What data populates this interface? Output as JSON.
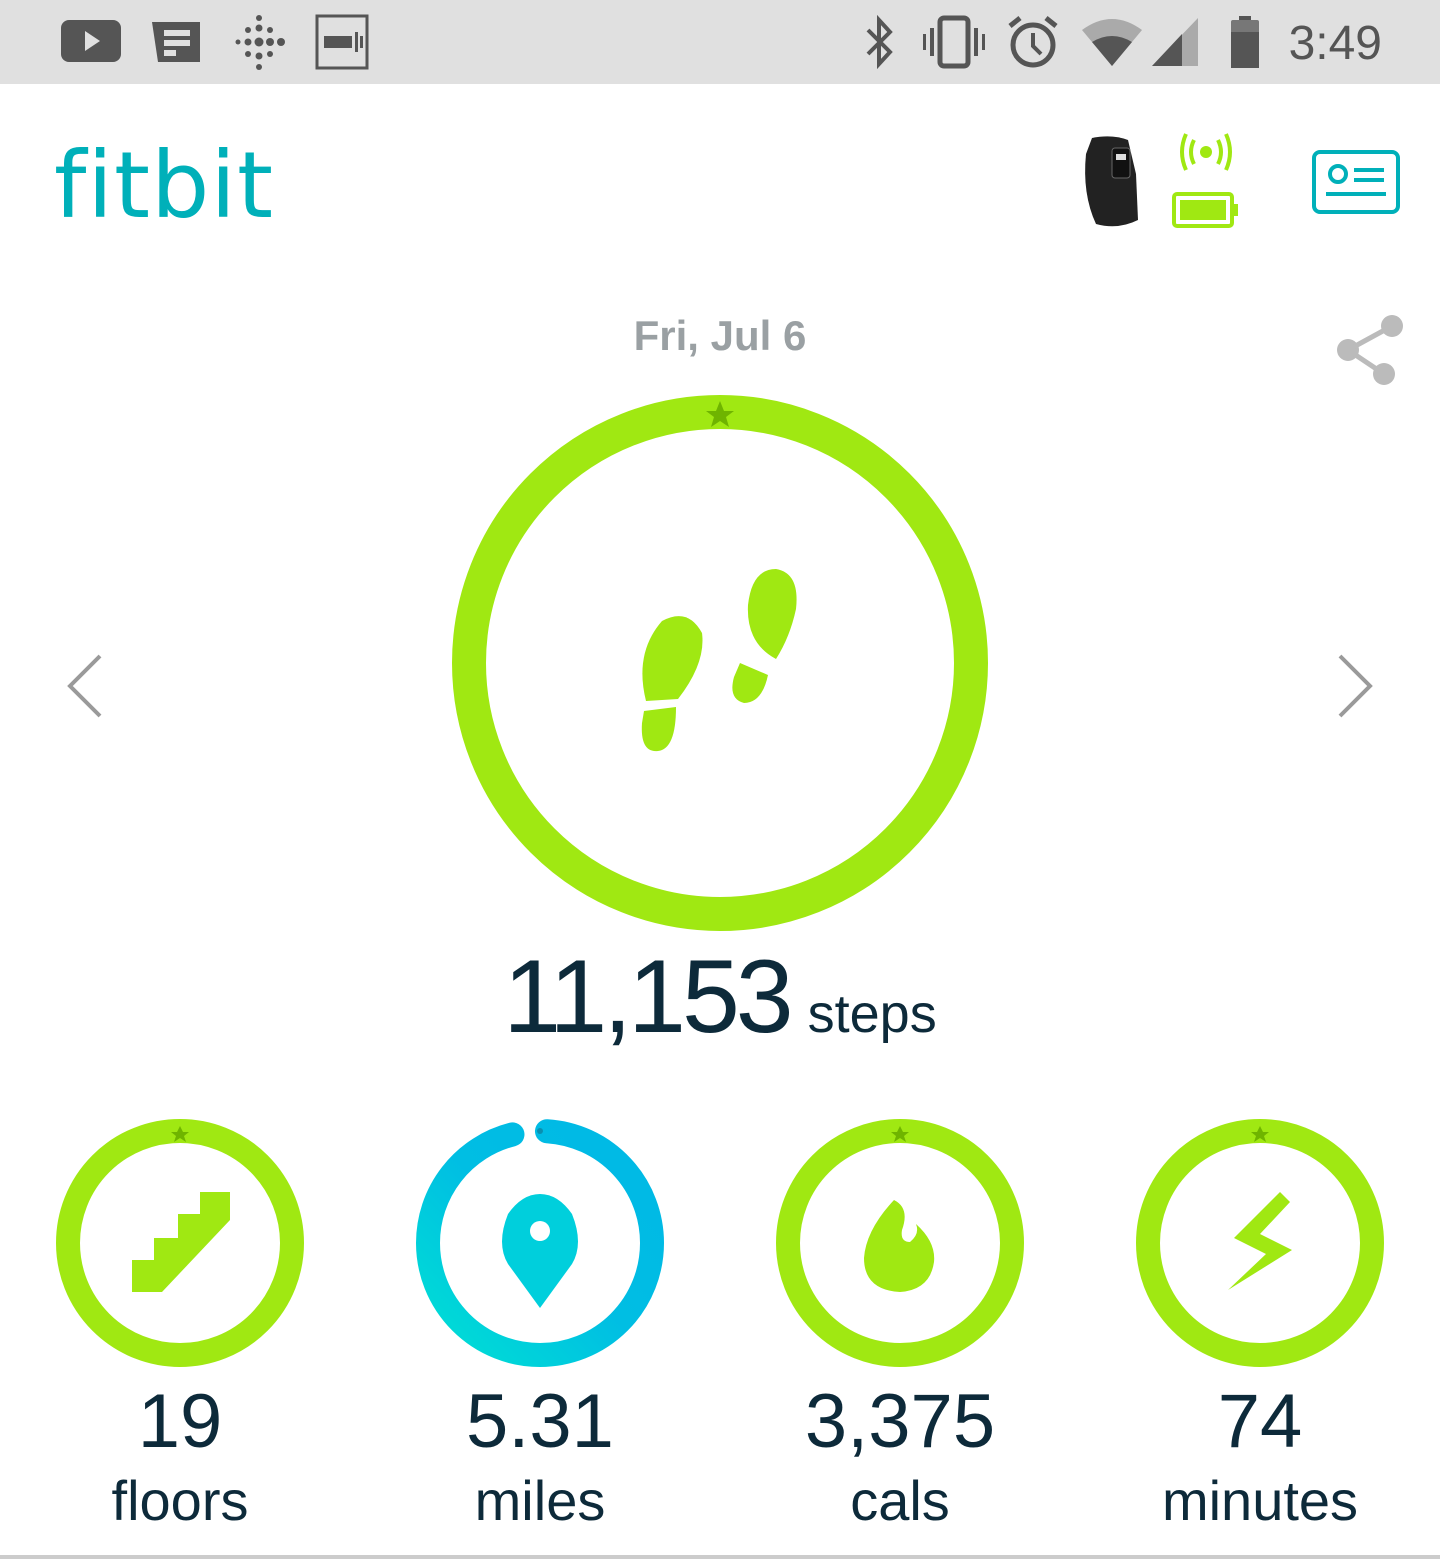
{
  "status_bar": {
    "left_icons": [
      "youtube-icon",
      "news-icon",
      "fitbit-dots-icon",
      "barcode-icon"
    ],
    "right_icons": [
      "bluetooth-icon",
      "vibrate-icon",
      "alarm-icon",
      "wifi-icon",
      "signal-icon",
      "battery-icon"
    ],
    "time": "3:49"
  },
  "header": {
    "logo": "fitbit",
    "device_icon": "tracker-icon",
    "sync_icon": "sync-signal-icon",
    "battery_level": 1.0,
    "profile_icon": "profile-card-icon"
  },
  "colors": {
    "accent": "#00b0b9",
    "goal_green": "#a0e812",
    "miles_blue": "#00bbe3",
    "text_dark": "#0d2a3a"
  },
  "date": "Fri, Jul 6",
  "steps": {
    "value": "11,153",
    "unit": "steps",
    "progress": 1.0,
    "goal_met": true
  },
  "stats": [
    {
      "value": "19",
      "unit": "floors",
      "icon": "stairs-icon",
      "progress": 1.0,
      "goal_met": true
    },
    {
      "value": "5.31",
      "unit": "miles",
      "icon": "location-pin-icon",
      "progress": 0.97,
      "goal_met": false
    },
    {
      "value": "3,375",
      "unit": "cals",
      "icon": "flame-icon",
      "progress": 1.0,
      "goal_met": true
    },
    {
      "value": "74",
      "unit": "minutes",
      "icon": "lightning-icon",
      "progress": 1.0,
      "goal_met": true
    }
  ]
}
